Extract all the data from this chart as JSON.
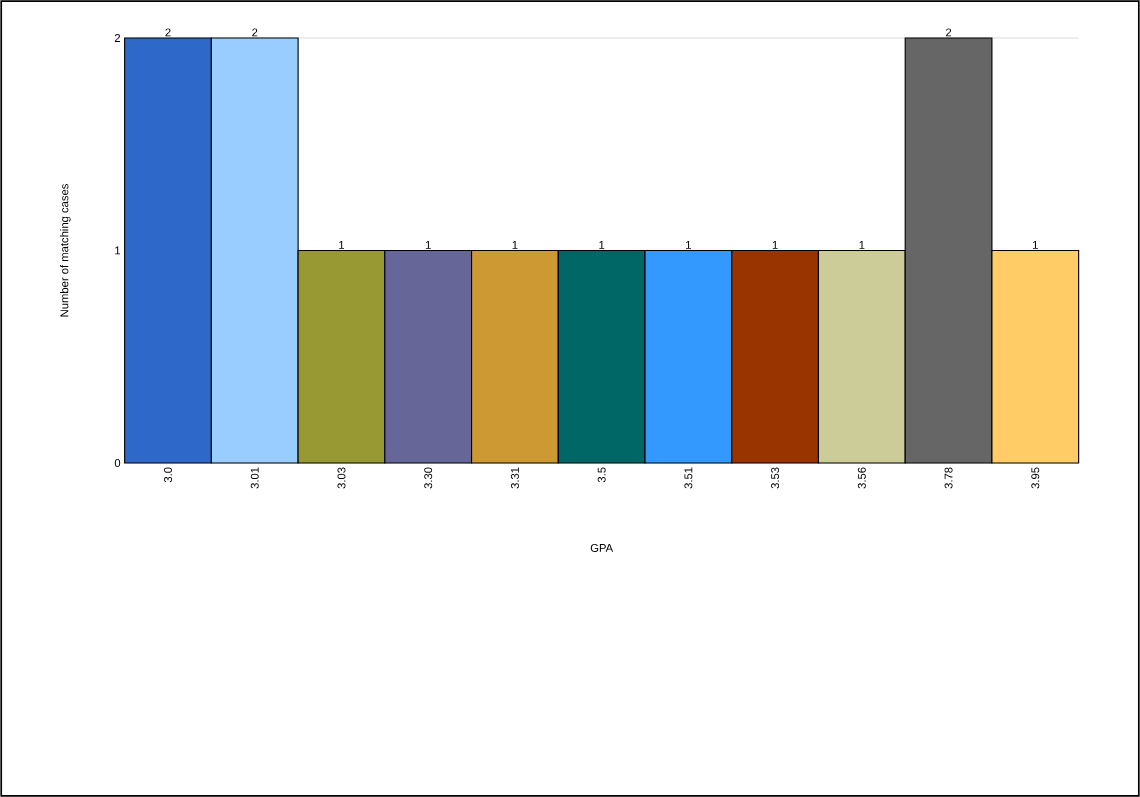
{
  "chart_data": {
    "type": "bar",
    "xlabel": "GPA",
    "ylabel": "Number of matching cases",
    "categories": [
      "3.0",
      "3.01",
      "3.03",
      "3.30",
      "3.31",
      "3.5",
      "3.51",
      "3.53",
      "3.56",
      "3.78",
      "3.95"
    ],
    "values": [
      2,
      2,
      1,
      1,
      1,
      1,
      1,
      1,
      1,
      2,
      1
    ],
    "colors": [
      "#2e69c9",
      "#99ccff",
      "#999933",
      "#666699",
      "#cc9933",
      "#006666",
      "#3399ff",
      "#993300",
      "#cccc99",
      "#666666",
      "#ffcc66"
    ],
    "ylim": [
      0,
      2
    ],
    "yticks": [
      0,
      1,
      2
    ],
    "grid": "y",
    "data_labels": true
  }
}
